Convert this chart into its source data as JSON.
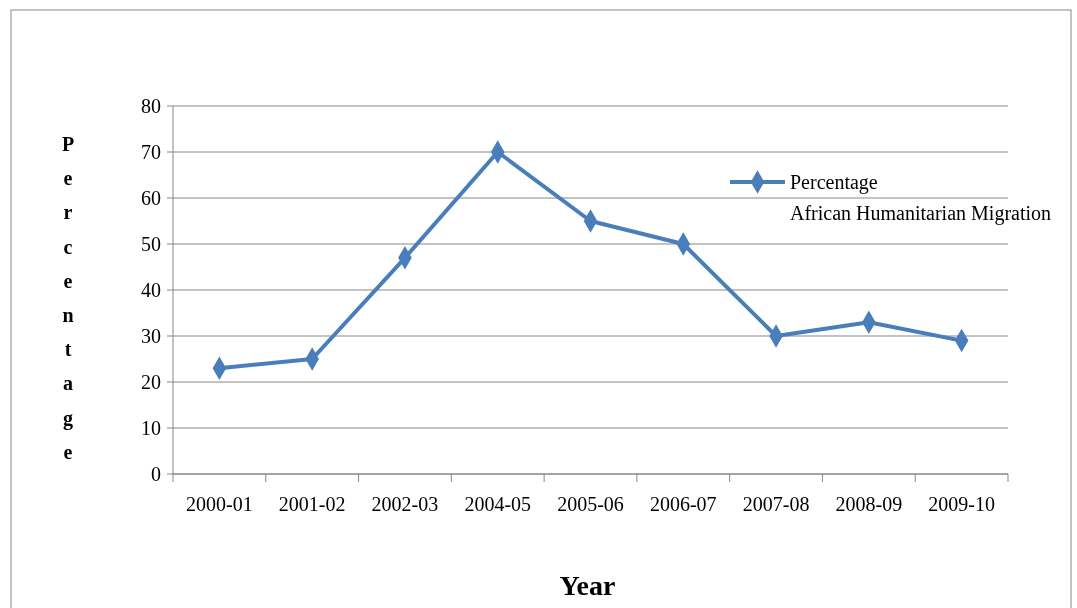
{
  "chart_data": {
    "type": "line",
    "xlabel": "Year",
    "ylabel": "Percentage",
    "categories": [
      "2000-01",
      "2001-02",
      "2002-03",
      "2004-05",
      "2005-06",
      "2006-07",
      "2007-08",
      "2008-09",
      "2009-10"
    ],
    "series": [
      {
        "name": "Percentage African Humanitarian Migration",
        "color": "#4a7ebb",
        "values": [
          23,
          25,
          47,
          70,
          55,
          50,
          30,
          33,
          29
        ]
      }
    ],
    "ylim": [
      0,
      80
    ],
    "yticks": [
      0,
      10,
      20,
      30,
      40,
      50,
      60,
      70,
      80
    ],
    "grid": "y",
    "legend": "right",
    "marker": "diamond",
    "line_style": "solid"
  }
}
